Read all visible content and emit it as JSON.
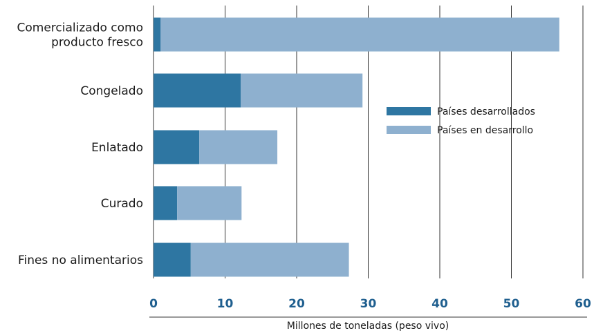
{
  "chart_data": {
    "type": "bar",
    "orientation": "horizontal",
    "stacked": true,
    "categories": [
      [
        "Comercializado como",
        "producto fresco"
      ],
      [
        "Congelado"
      ],
      [
        "Enlatado"
      ],
      [
        "Curado"
      ],
      [
        "Fines no alimentarios"
      ]
    ],
    "series": [
      {
        "name": "Países desarrollados",
        "values": [
          1,
          12.2,
          6.4,
          3.3,
          5.2
        ],
        "color": "#2e76a2"
      },
      {
        "name": "Países en desarrollo",
        "values": [
          55.7,
          17,
          10.9,
          9,
          22.1
        ],
        "color": "#8eb0cf"
      }
    ],
    "xlabel": "Millones de toneladas (peso vivo)",
    "xlim": [
      0,
      60
    ],
    "xticks": [
      0,
      10,
      20,
      30,
      40,
      50,
      60
    ],
    "tick_color": "#1f5f8f",
    "grid": "vertical",
    "legend_position": "right-center"
  }
}
